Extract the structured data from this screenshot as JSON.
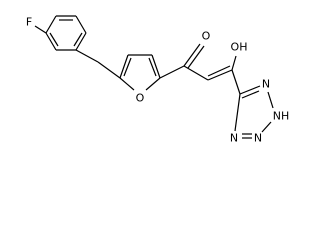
{
  "atoms": {
    "fluorine": "F",
    "furan_oxygen": "O",
    "ketone_oxygen": "O",
    "hydroxyl": "OH",
    "tetrazole_n1": "N",
    "tetrazole_n2": "NH",
    "tetrazole_n3": "N",
    "tetrazole_n4": "N"
  }
}
